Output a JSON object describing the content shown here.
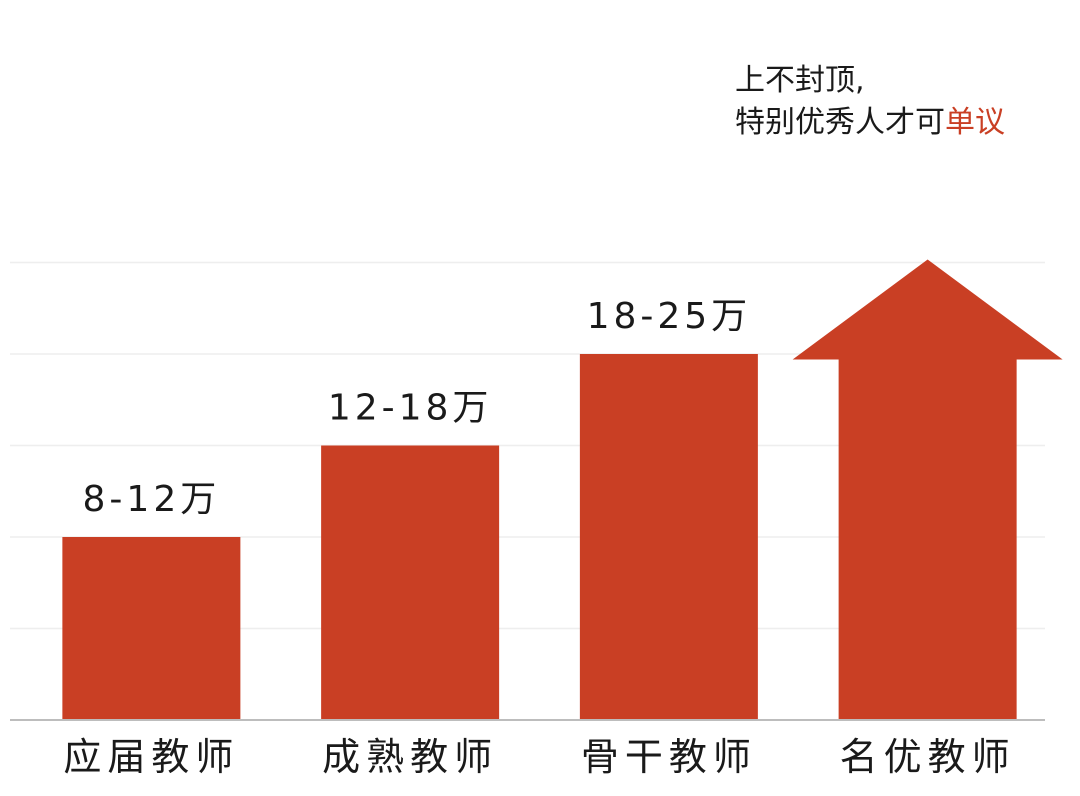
{
  "chart_data": {
    "type": "bar",
    "categories": [
      "应届教师",
      "成熟教师",
      "骨干教师",
      "名优教师"
    ],
    "values": [
      2,
      3,
      4,
      5
    ],
    "value_labels": [
      "8-12万",
      "12-18万",
      "18-25万",
      ""
    ],
    "last_bar_is_arrow": true,
    "annotation": {
      "line1": "上不封顶,",
      "line2_prefix": "特别优秀人才可",
      "line2_highlight": "单议"
    },
    "ylim": [
      0,
      5
    ],
    "grid": true,
    "colors": {
      "bar": "#c93f24",
      "highlight_text": "#c93f24",
      "grid": "#eeeeee",
      "axis": "#bdbdbd",
      "text": "#1a1a1a"
    }
  }
}
